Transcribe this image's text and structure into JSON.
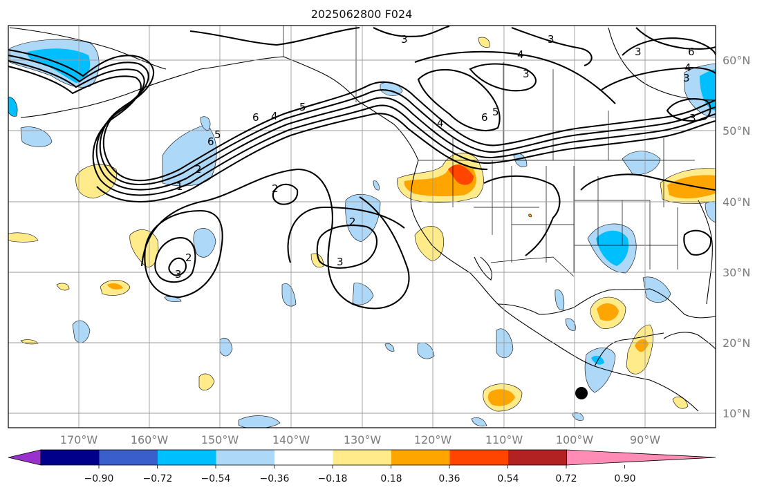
{
  "title": "2025062800 F024",
  "map": {
    "lat_labels": [
      "60°N",
      "50°N",
      "40°N",
      "30°N",
      "20°N",
      "10°N"
    ],
    "lon_labels": [
      "170°W",
      "160°W",
      "150°W",
      "140°W",
      "130°W",
      "120°W",
      "110°W",
      "100°W",
      "90°W"
    ],
    "contour_labels": [
      "3",
      "3",
      "3",
      "4",
      "3",
      "6",
      "4",
      "3",
      "3",
      "6",
      "5",
      "4",
      "6",
      "5",
      "4",
      "6",
      "5",
      "2",
      "1",
      "2",
      "2",
      "3",
      "2",
      "3"
    ]
  },
  "colorbar": {
    "ticks": [
      "−0.90",
      "−0.72",
      "−0.54",
      "−0.36",
      "−0.18",
      "0.18",
      "0.36",
      "0.54",
      "0.72",
      "0.90"
    ],
    "colors": [
      "#9932cc",
      "#00008b",
      "#3a5fcd",
      "#00bfff",
      "#add8f8",
      "#ffffff",
      "#ffeb8a",
      "#ffa500",
      "#ff4500",
      "#b22222",
      "#ff8cb4"
    ]
  }
}
